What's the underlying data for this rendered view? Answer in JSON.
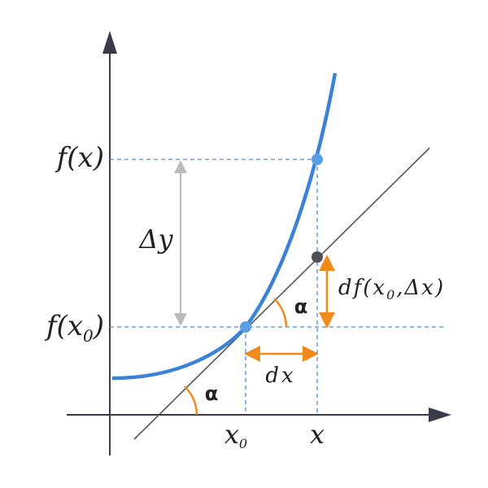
{
  "labels": {
    "fx": "f(x)",
    "fx0": {
      "main": "f(x",
      "sub": "0",
      "tail": ")"
    },
    "delta_y": "Δy",
    "alpha_top": "α",
    "alpha_bottom": "α",
    "dx": "dx",
    "df": {
      "main": "df(x",
      "sub": "0",
      "tail": ",Δx)"
    },
    "x0": {
      "main": "x",
      "sub": "0"
    },
    "x": "x"
  }
}
